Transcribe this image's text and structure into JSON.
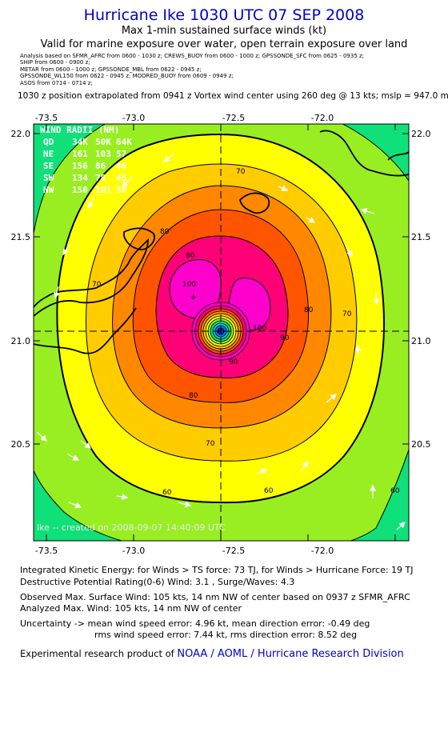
{
  "header": {
    "title": "Hurricane Ike 1030 UTC 07 SEP 2008",
    "subtitle": "Max 1-min sustained surface winds (kt)",
    "validity": "Valid for marine exposure over water, open terrain exposure over land"
  },
  "analysis_sources": [
    "Analysis based on  SFMR_AFRC from 0600 - 1030 z;  CREWS_BUOY from 0600 - 1000 z;  GPSSONDE_SFC from 0625 - 0935 z;",
    "SHIP from 0600 - 0900 z;",
    "METAR from 0600 - 1000 z;  GPSSONDE_MBL from 0622 - 0945 z;",
    "GPSSONDE_WL150 from 0622 - 0945 z;  MOORED_BUOY from 0609 - 0949 z;",
    "ASOS from 0714 - 0714 z;"
  ],
  "position_note": "1030 z position extrapolated from 0941 z Vortex wind center using 260 deg @ 13 kts; mslp = 947.0 mb",
  "map": {
    "x_ticks": [
      "-73.5",
      "-73.0",
      "-72.5",
      "-72.0"
    ],
    "y_ticks": [
      "22.0",
      "21.5",
      "21.0",
      "20.5"
    ],
    "center": {
      "lon": -72.55,
      "lat": 21.05
    },
    "contour_labels": [
      "60",
      "60",
      "60",
      "70",
      "70",
      "70",
      "70",
      "80",
      "80",
      "80",
      "80",
      "90",
      "90",
      "100",
      "100"
    ],
    "watermark": "Ike -- created on 2008-09-07 14:40:09 UTC",
    "wind_radii": {
      "title": "WIND RADII (NM)",
      "header": [
        "QD",
        "34K",
        "50K",
        "64K"
      ],
      "rows": [
        [
          "NE",
          "161",
          "103",
          "57"
        ],
        [
          "SE",
          "156",
          "86",
          "46"
        ],
        [
          "SW",
          "134",
          "78",
          "45"
        ],
        [
          "NW",
          "150",
          "101",
          "58"
        ]
      ]
    },
    "colors": {
      "c50": "#10e07a",
      "c60": "#99ee22",
      "c70": "#ffff00",
      "c75": "#ffcc00",
      "c80": "#ff8800",
      "c85": "#ff5500",
      "c90": "#ff0077",
      "c100": "#ff00cc"
    }
  },
  "footer": {
    "ike1": "Integrated Kinetic Energy:  for Winds > TS force: 73 TJ,  for Winds > Hurricane Force: 19 TJ",
    "ike2": "Destructive Potential Rating(0-6)   Wind: 3.1 , Surge/Waves: 4.3",
    "obs1": "Observed Max. Surface Wind: 105 kts, 14 nm NW of center based on 0937 z SFMR_AFRC",
    "obs2": "Analyzed Max. Wind: 105 kts, 14 nm NW of center",
    "unc1": "Uncertainty -> mean wind speed error: 4.96 kt,   mean direction error:  -0.49 deg",
    "unc2": "rms wind speed error: 7.44 kt,   rms direction error: 8.52 deg",
    "product_prefix": "Experimental research product of ",
    "product_link": "NOAA / AOML / Hurricane Research Division"
  }
}
